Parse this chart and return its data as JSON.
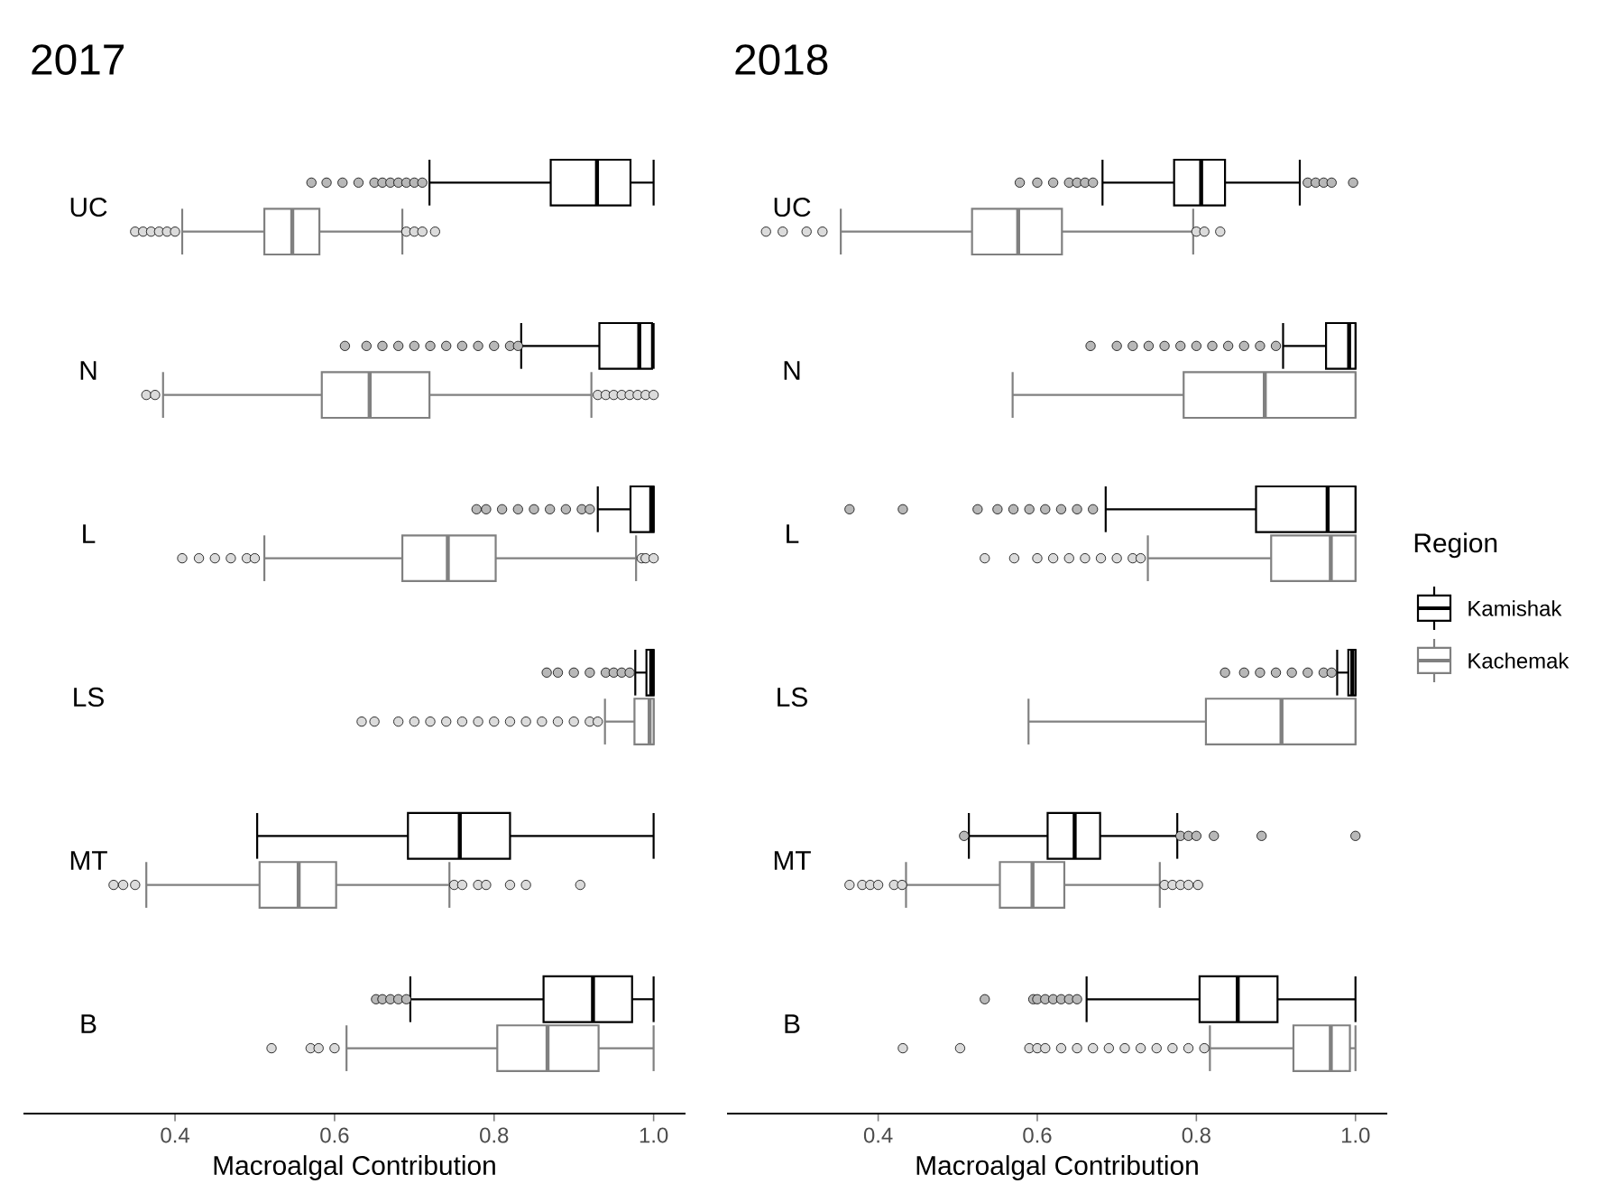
{
  "chart_data": [
    {
      "type": "box",
      "title": "2017",
      "xlabel": "Macroalgal Contribution",
      "orientation": "horizontal",
      "categories": [
        "UC",
        "N",
        "L",
        "LS",
        "MT",
        "B"
      ],
      "xlim": [
        0.21,
        1.04
      ],
      "xticks": [
        0.4,
        0.6,
        0.8,
        {
          "value": 1.0,
          "label": "1.0"
        }
      ],
      "legend": "right",
      "legend_title": "Region",
      "series": [
        {
          "name": "Kamishak",
          "color": "#000000",
          "boxes": [
            {
              "low": 0.719,
              "q1": 0.871,
              "median": 0.929,
              "q3": 0.971,
              "high": 1.0,
              "outliers": [
                0.571,
                0.59,
                0.61,
                0.63,
                0.65,
                0.66,
                0.67,
                0.68,
                0.69,
                0.7,
                0.71
              ]
            },
            {
              "low": 0.834,
              "q1": 0.932,
              "median": 0.982,
              "q3": 0.998,
              "high": 1.0,
              "outliers": [
                0.613,
                0.64,
                0.66,
                0.68,
                0.7,
                0.72,
                0.74,
                0.76,
                0.78,
                0.8,
                0.82,
                0.83
              ]
            },
            {
              "low": 0.93,
              "q1": 0.971,
              "median": 0.997,
              "q3": 1.0,
              "high": 1.0,
              "outliers": [
                0.778,
                0.79,
                0.81,
                0.83,
                0.85,
                0.87,
                0.89,
                0.91,
                0.92
              ]
            },
            {
              "low": 0.977,
              "q1": 0.991,
              "median": 0.997,
              "q3": 1.0,
              "high": 1.0,
              "outliers": [
                0.866,
                0.88,
                0.9,
                0.92,
                0.94,
                0.95,
                0.96,
                0.97
              ]
            },
            {
              "low": 0.503,
              "q1": 0.692,
              "median": 0.757,
              "q3": 0.82,
              "high": 1.0
            },
            {
              "low": 0.695,
              "q1": 0.862,
              "median": 0.924,
              "q3": 0.973,
              "high": 1.0,
              "outliers": [
                0.652,
                0.66,
                0.67,
                0.68,
                0.69
              ]
            }
          ]
        },
        {
          "name": "Kachemak",
          "color": "#808080",
          "boxes": [
            {
              "low": 0.409,
              "q1": 0.512,
              "median": 0.547,
              "q3": 0.581,
              "high": 0.685,
              "outliers": [
                0.35,
                0.36,
                0.37,
                0.38,
                0.39,
                0.4,
                0.69,
                0.7,
                0.71,
                0.726
              ]
            },
            {
              "low": 0.385,
              "q1": 0.584,
              "median": 0.644,
              "q3": 0.719,
              "high": 0.922,
              "outliers": [
                0.364,
                0.375,
                0.93,
                0.94,
                0.95,
                0.96,
                0.97,
                0.98,
                0.99,
                1.0
              ]
            },
            {
              "low": 0.512,
              "q1": 0.685,
              "median": 0.742,
              "q3": 0.802,
              "high": 0.978,
              "outliers": [
                0.409,
                0.43,
                0.45,
                0.47,
                0.49,
                0.5,
                0.985,
                0.99,
                1.0
              ]
            },
            {
              "low": 0.939,
              "q1": 0.976,
              "median": 0.995,
              "q3": 1.0,
              "high": 1.0,
              "outliers": [
                0.634,
                0.65,
                0.68,
                0.7,
                0.72,
                0.74,
                0.76,
                0.78,
                0.8,
                0.82,
                0.84,
                0.86,
                0.88,
                0.9,
                0.92,
                0.93
              ]
            },
            {
              "low": 0.364,
              "q1": 0.506,
              "median": 0.555,
              "q3": 0.602,
              "high": 0.744,
              "outliers": [
                0.323,
                0.335,
                0.35,
                0.75,
                0.76,
                0.78,
                0.79,
                0.82,
                0.84,
                0.908
              ]
            },
            {
              "low": 0.615,
              "q1": 0.804,
              "median": 0.867,
              "q3": 0.931,
              "high": 1.0,
              "outliers": [
                0.521,
                0.57,
                0.58,
                0.6
              ]
            }
          ]
        }
      ]
    },
    {
      "type": "box",
      "title": "2018",
      "xlabel": "Macroalgal Contribution",
      "orientation": "horizontal",
      "categories": [
        "UC",
        "N",
        "L",
        "LS",
        "MT",
        "B"
      ],
      "xlim": [
        0.21,
        1.04
      ],
      "xticks": [
        0.4,
        0.6,
        0.8,
        {
          "value": 1.0,
          "label": "1.0"
        }
      ],
      "series": [
        {
          "color": "#000000",
          "boxes": [
            {
              "low": 0.682,
              "q1": 0.772,
              "median": 0.806,
              "q3": 0.836,
              "high": 0.93,
              "outliers": [
                0.578,
                0.6,
                0.62,
                0.64,
                0.65,
                0.66,
                0.67,
                0.94,
                0.95,
                0.96,
                0.97,
                0.997
              ]
            },
            {
              "low": 0.909,
              "q1": 0.963,
              "median": 0.992,
              "q3": 1.0,
              "high": 1.0,
              "outliers": [
                0.667,
                0.7,
                0.72,
                0.74,
                0.76,
                0.78,
                0.8,
                0.82,
                0.84,
                0.86,
                0.88,
                0.9
              ]
            },
            {
              "low": 0.686,
              "q1": 0.875,
              "median": 0.965,
              "q3": 1.0,
              "high": 1.0,
              "outliers": [
                0.364,
                0.431,
                0.525,
                0.55,
                0.57,
                0.59,
                0.61,
                0.63,
                0.65,
                0.67
              ]
            },
            {
              "low": 0.977,
              "q1": 0.991,
              "median": 0.996,
              "q3": 1.0,
              "high": 1.0,
              "outliers": [
                0.836,
                0.86,
                0.88,
                0.9,
                0.92,
                0.94,
                0.96,
                0.97
              ]
            },
            {
              "low": 0.514,
              "q1": 0.613,
              "median": 0.647,
              "q3": 0.679,
              "high": 0.776,
              "outliers": [
                0.508,
                0.78,
                0.79,
                0.8,
                0.822,
                0.882,
                1.0
              ]
            },
            {
              "low": 0.662,
              "q1": 0.804,
              "median": 0.852,
              "q3": 0.902,
              "high": 1.0,
              "outliers": [
                0.534,
                0.595,
                0.6,
                0.61,
                0.62,
                0.63,
                0.64,
                0.65
              ]
            }
          ]
        },
        {
          "color": "#808080",
          "boxes": [
            {
              "low": 0.353,
              "q1": 0.518,
              "median": 0.576,
              "q3": 0.631,
              "high": 0.796,
              "outliers": [
                0.259,
                0.28,
                0.31,
                0.33,
                0.8,
                0.81,
                0.83
              ]
            },
            {
              "low": 0.569,
              "q1": 0.784,
              "median": 0.886,
              "q3": 1.0,
              "high": 1.0
            },
            {
              "low": 0.739,
              "q1": 0.894,
              "median": 0.969,
              "q3": 1.0,
              "high": 1.0,
              "outliers": [
                0.534,
                0.571,
                0.6,
                0.62,
                0.64,
                0.66,
                0.68,
                0.7,
                0.72,
                0.73
              ]
            },
            {
              "low": 0.589,
              "q1": 0.812,
              "median": 0.907,
              "q3": 1.0,
              "high": 1.0
            },
            {
              "low": 0.435,
              "q1": 0.553,
              "median": 0.594,
              "q3": 0.634,
              "high": 0.754,
              "outliers": [
                0.364,
                0.38,
                0.39,
                0.4,
                0.42,
                0.43,
                0.76,
                0.77,
                0.78,
                0.79,
                0.802
              ]
            },
            {
              "low": 0.817,
              "q1": 0.922,
              "median": 0.969,
              "q3": 0.993,
              "high": 1.0,
              "outliers": [
                0.431,
                0.503,
                0.59,
                0.6,
                0.61,
                0.63,
                0.65,
                0.67,
                0.69,
                0.71,
                0.73,
                0.75,
                0.77,
                0.79,
                0.81
              ]
            }
          ]
        }
      ]
    }
  ]
}
